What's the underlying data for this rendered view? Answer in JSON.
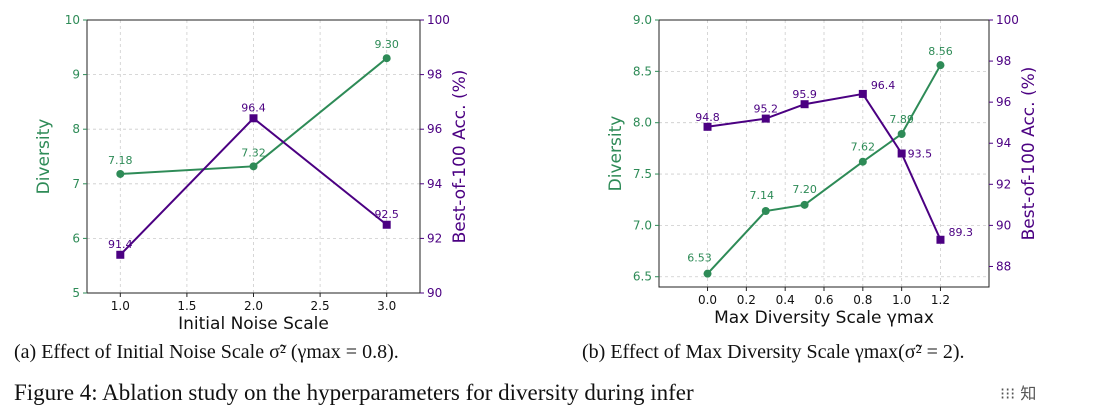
{
  "colors": {
    "diversity": "#2e8b57",
    "accuracy": "#4b0082",
    "grid": "#cccccc",
    "axis": "#222222"
  },
  "chart_data": [
    {
      "type": "line",
      "x": [
        1.0,
        2.0,
        3.0
      ],
      "x_ticks": [
        "1.0",
        "1.5",
        "2.0",
        "2.5",
        "3.0"
      ],
      "xlim": [
        0.75,
        3.25
      ],
      "xlabel": "Initial Noise Scale",
      "ylabel_left": "Diversity",
      "ylabel_right": "Best-of-100 Acc. (%)",
      "ylim_left": [
        5,
        10
      ],
      "ylim_right": [
        90,
        100
      ],
      "left_ticks": [
        "5",
        "6",
        "7",
        "8",
        "9",
        "10"
      ],
      "right_ticks": [
        "90",
        "92",
        "94",
        "96",
        "98",
        "100"
      ],
      "grid": true,
      "series": [
        {
          "name": "Diversity",
          "axis": "left",
          "marker": "circle",
          "values": [
            7.18,
            7.32,
            9.3
          ],
          "labels": [
            "7.18",
            "7.32",
            "9.30"
          ]
        },
        {
          "name": "Best-of-100 Acc. (%)",
          "axis": "right",
          "marker": "square",
          "values": [
            91.4,
            96.4,
            92.5
          ],
          "labels": [
            "91.4",
            "96.4",
            "92.5"
          ]
        }
      ],
      "caption": "(a) Effect of Initial Noise Scale σ̃² (γmax = 0.8)."
    },
    {
      "type": "line",
      "x": [
        0.0,
        0.3,
        0.5,
        0.8,
        1.0,
        1.2
      ],
      "x_ticks": [
        "0.0",
        "0.2",
        "0.4",
        "0.6",
        "0.8",
        "1.0",
        "1.2"
      ],
      "xlim": [
        -0.25,
        1.45
      ],
      "xlabel": "Max Diversity Scale γmax",
      "ylabel_left": "Diversity",
      "ylabel_right": "Best-of-100 Acc. (%)",
      "ylim_left": [
        6.4,
        9.0
      ],
      "ylim_right": [
        87.0,
        100.0
      ],
      "left_ticks": [
        "6.5",
        "7.0",
        "7.5",
        "8.0",
        "8.5",
        "9.0"
      ],
      "right_ticks": [
        "88",
        "90",
        "92",
        "94",
        "96",
        "98",
        "100"
      ],
      "grid": true,
      "series": [
        {
          "name": "Diversity",
          "axis": "left",
          "marker": "circle",
          "values": [
            6.53,
            7.14,
            7.2,
            7.62,
            7.89,
            8.56
          ],
          "labels": [
            "6.53",
            "7.14",
            "7.20",
            "7.62",
            "7.89",
            "8.56"
          ]
        },
        {
          "name": "Best-of-100 Acc. (%)",
          "axis": "right",
          "marker": "square",
          "values": [
            94.8,
            95.2,
            95.9,
            96.4,
            93.5,
            89.3
          ],
          "labels": [
            "94.8",
            "95.2",
            "95.9",
            "96.4",
            "93.5",
            "89.3"
          ]
        }
      ],
      "caption": "(b) Effect of Max Diversity Scale γmax(σ̃² = 2)."
    }
  ],
  "figure_caption": "Figure 4: Ablation study on the hyperparameters for diversity during infer",
  "watermark": "⁝⁝⁝ 知"
}
